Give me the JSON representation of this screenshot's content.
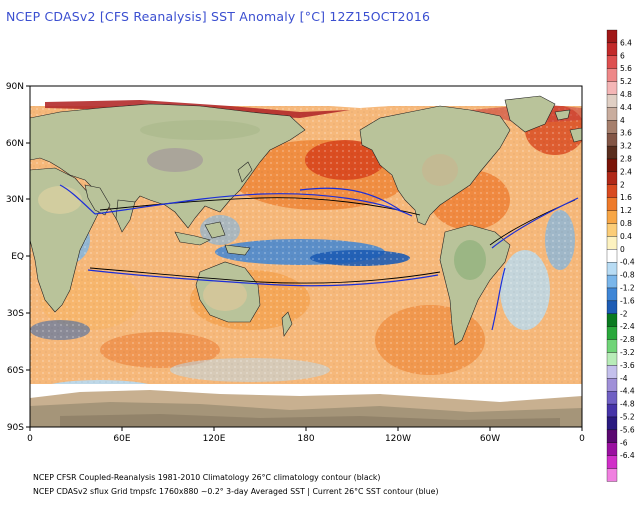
{
  "title": "NCEP CDASv2 [CFS Reanalysis] SST Anomaly [°C] 12Z15OCT2016",
  "lat_labels": [
    "90N",
    "60N",
    "30N",
    "EQ",
    "30S",
    "60S",
    "90S"
  ],
  "lon_labels": [
    "0",
    "60E",
    "120E",
    "180",
    "120W",
    "60W",
    "0"
  ],
  "colorbar": {
    "labels": [
      "6.4",
      "6",
      "5.6",
      "5.2",
      "4.8",
      "4.4",
      "4",
      "3.6",
      "3.2",
      "2.8",
      "2.4",
      "2",
      "1.6",
      "1.2",
      "0.8",
      "0.4",
      "0",
      "-0.4",
      "-0.8",
      "-1.2",
      "-1.6",
      "-2",
      "-2.4",
      "-2.8",
      "-3.2",
      "-3.6",
      "-4",
      "-4.4",
      "-4.8",
      "-5.2",
      "-5.6",
      "-6",
      "-6.4"
    ],
    "colors": [
      "#a01818",
      "#c22a2a",
      "#dd5050",
      "#ee8888",
      "#f4b6b6",
      "#e0cfc4",
      "#c9ad9e",
      "#a67f6c",
      "#835646",
      "#5a2e1e",
      "#7a1408",
      "#b02818",
      "#d84a20",
      "#ee7a2a",
      "#f7a646",
      "#fbcd78",
      "#fdf2c0",
      "#ffffff",
      "#b8dcf4",
      "#7ab6ea",
      "#3f86d6",
      "#1d5cb4",
      "#0a7a20",
      "#2aa83c",
      "#70d478",
      "#b8ecb8",
      "#c4c0ec",
      "#a090d8",
      "#7060c4",
      "#4634a8",
      "#2a1a80",
      "#5a0870",
      "#9a10a0",
      "#d030c8",
      "#f080e0"
    ]
  },
  "footer": {
    "line1": "NCEP CFSR Coupled-Reanalysis 1981-2010 Climatology     26°C climatology contour (black)",
    "line2": "NCEP CDASv2 sflux Grid tmpsfc 1760x880 ~0.2°     3-day Averaged SST | Current 26°C SST contour (blue)"
  }
}
